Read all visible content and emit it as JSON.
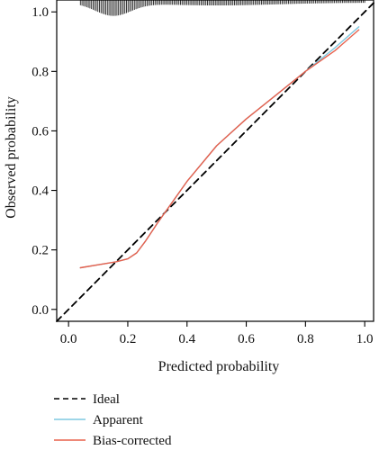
{
  "chart_data": {
    "type": "line",
    "xlabel": "Predicted probability",
    "ylabel": "Observed probability",
    "xlim": [
      -0.04,
      1.03
    ],
    "ylim": [
      -0.04,
      1.04
    ],
    "x_ticks": [
      0.0,
      0.2,
      0.4,
      0.6,
      0.8,
      1.0
    ],
    "x_tick_labels": [
      "0.0",
      "0.2",
      "0.4",
      "0.6",
      "0.8",
      "1.0"
    ],
    "y_ticks": [
      0.0,
      0.2,
      0.4,
      0.6,
      0.8,
      1.0
    ],
    "y_tick_labels": [
      "0.0",
      "0.2",
      "0.4",
      "0.6",
      "0.8",
      "1.0"
    ],
    "grid": false,
    "legend_position": "bottom-left, below plot",
    "series": [
      {
        "name": "Ideal",
        "style": "dashed",
        "color": "#000000",
        "x": [
          -0.04,
          1.03
        ],
        "y": [
          -0.04,
          1.03
        ]
      },
      {
        "name": "Apparent",
        "style": "solid",
        "color": "#7fc8e0",
        "x": [
          0.04,
          0.1,
          0.16,
          0.2,
          0.23,
          0.26,
          0.3,
          0.35,
          0.4,
          0.5,
          0.6,
          0.7,
          0.8,
          0.9,
          0.98
        ],
        "y": [
          0.14,
          0.15,
          0.16,
          0.17,
          0.19,
          0.23,
          0.29,
          0.36,
          0.43,
          0.55,
          0.64,
          0.72,
          0.8,
          0.88,
          0.95
        ]
      },
      {
        "name": "Bias-corrected",
        "style": "solid",
        "color": "#e8604c",
        "x": [
          0.04,
          0.1,
          0.16,
          0.2,
          0.23,
          0.26,
          0.3,
          0.35,
          0.4,
          0.5,
          0.6,
          0.7,
          0.8,
          0.9,
          0.98
        ],
        "y": [
          0.14,
          0.15,
          0.16,
          0.17,
          0.19,
          0.23,
          0.29,
          0.36,
          0.43,
          0.55,
          0.64,
          0.72,
          0.8,
          0.87,
          0.94
        ]
      }
    ],
    "rug": {
      "description": "distribution of predicted probabilities shown as vertical tick marks at top",
      "x_start": 0.04,
      "x_end": 1.0,
      "mode": 0.15
    }
  }
}
